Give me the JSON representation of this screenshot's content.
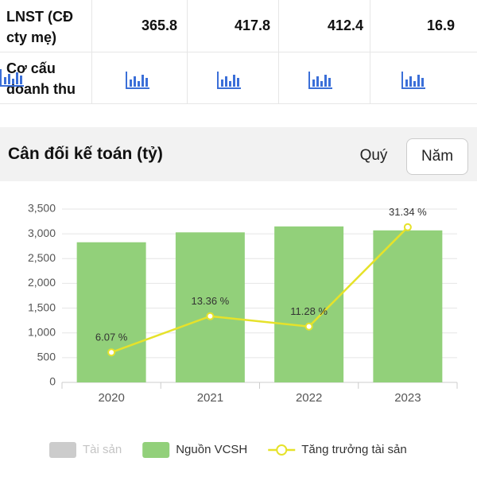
{
  "table": {
    "rows": [
      [
        "LNST (CĐ cty mẹ)",
        "365.8",
        "417.8",
        "412.4",
        "16.9"
      ],
      [
        "Cơ cấu doanh thu"
      ]
    ]
  },
  "section": {
    "title": "Cân đối kế toán (tỷ)",
    "tabs": [
      "Quý",
      "Năm"
    ],
    "selected_tab": 1
  },
  "chart_data": {
    "type": "bar",
    "categories": [
      "2020",
      "2021",
      "2022",
      "2023"
    ],
    "series": [
      {
        "name": "Tài sản",
        "color": "#cccccc",
        "hidden": true
      },
      {
        "name": "Nguồn VCSH",
        "type": "bar",
        "color": "#92d07a",
        "values": [
          2830,
          3030,
          3150,
          3070
        ]
      },
      {
        "name": "Tăng trưởng tài sản",
        "type": "line",
        "axis": "y2",
        "color": "#e6e22a",
        "values": [
          6.07,
          13.36,
          11.28,
          31.34
        ],
        "value_labels": [
          "6.07 %",
          "13.36 %",
          "11.28 %",
          "31.34 %"
        ]
      }
    ],
    "ylim": [
      0,
      3500
    ],
    "yticks": [
      0,
      {
        "value": 500,
        "label": "500"
      },
      {
        "value": 1000,
        "label": "1,000"
      },
      {
        "value": 1500,
        "label": "1,500"
      },
      {
        "value": 2000,
        "label": "2,000"
      },
      {
        "value": 2500,
        "label": "2,500"
      },
      {
        "value": 3000,
        "label": "3,000"
      },
      {
        "value": 3500,
        "label": "3,500"
      }
    ],
    "y2lim": [
      0,
      35
    ],
    "grid": true,
    "legend": "bottom"
  }
}
